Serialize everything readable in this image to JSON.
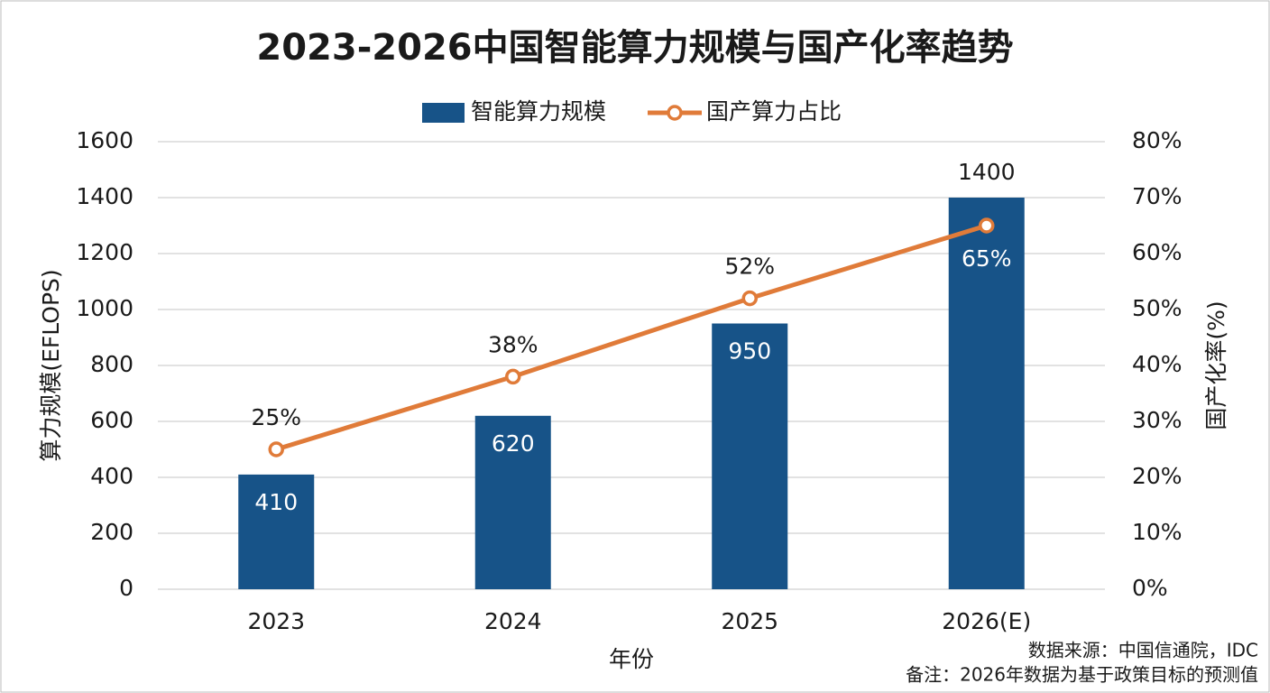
{
  "chart_data": {
    "type": "bar-line",
    "title": "2023-2026中国智能算力规模与国产化率趋势",
    "categories": [
      "2023",
      "2024",
      "2025",
      "2026(E)"
    ],
    "series": [
      {
        "name": "智能算力规模",
        "color": "#175388",
        "type": "bar",
        "values": [
          410,
          620,
          950,
          1400
        ]
      },
      {
        "name": "国产算力占比",
        "color": "#e07b39",
        "type": "line",
        "axis": "y2",
        "values": [
          25,
          38,
          52,
          65
        ],
        "value_labels": [
          "25%",
          "38%",
          "52%",
          "65%"
        ]
      }
    ],
    "ylim": [
      0,
      1600
    ],
    "yticks": [
      0,
      200,
      400,
      600,
      800,
      1000,
      1200,
      1400,
      1600
    ],
    "y2lim": [
      0,
      80
    ],
    "y2ticks": [
      {
        "value": 0,
        "label": "0%"
      },
      {
        "value": 10,
        "label": "10%"
      },
      {
        "value": 20,
        "label": "20%"
      },
      {
        "value": 30,
        "label": "30%"
      },
      {
        "value": 40,
        "label": "40%"
      },
      {
        "value": 50,
        "label": "50%"
      },
      {
        "value": 60,
        "label": "60%"
      },
      {
        "value": 70,
        "label": "70%"
      },
      {
        "value": 80,
        "label": "80%"
      }
    ],
    "ylabel": "算力规模(EFLOPS)",
    "y2label": "国产化率(%)",
    "xlabel": "年份",
    "grid": true,
    "notes": [
      "数据来源：中国信通院，IDC",
      "备注：2026年数据为基于政策目标的预测值"
    ]
  }
}
